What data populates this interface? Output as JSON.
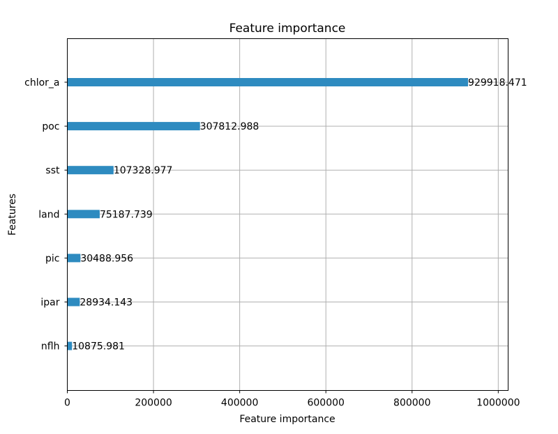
{
  "chart_data": {
    "type": "bar",
    "orientation": "horizontal",
    "title": "Feature importance",
    "xlabel": "Feature importance",
    "ylabel": "Features",
    "categories": [
      "chlor_a",
      "poc",
      "sst",
      "land",
      "pic",
      "ipar",
      "nflh"
    ],
    "values": [
      929918.471,
      307812.988,
      107328.977,
      75187.739,
      30488.956,
      28934.143,
      10875.981
    ],
    "value_labels": [
      "929918.471",
      "307812.988",
      "107328.977",
      "75187.739",
      "30488.956",
      "28934.143",
      "10875.981"
    ],
    "xticks": [
      0,
      200000,
      400000,
      600000,
      800000,
      1000000
    ],
    "xtick_labels": [
      "0",
      "200000",
      "400000",
      "600000",
      "800000",
      "1000000"
    ],
    "xlim": [
      0,
      1022910.318
    ],
    "grid": true,
    "bar_color": "#2e8bc0"
  }
}
